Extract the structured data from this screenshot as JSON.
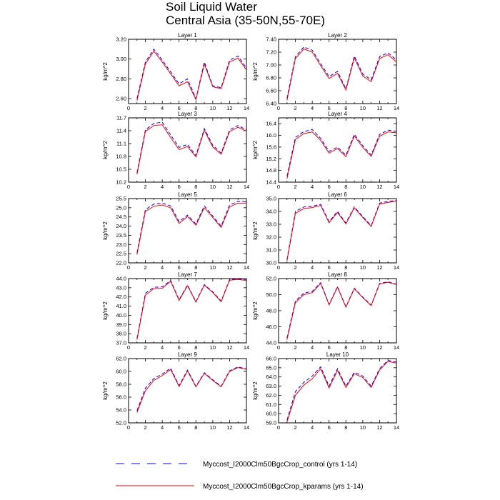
{
  "title": {
    "line1": "Soil Liquid Water",
    "line2": "Central Asia (35-50N,55-70E)"
  },
  "colors": {
    "control": "#0000ff",
    "kparams": "#ff0000",
    "axis": "#000000"
  },
  "legend": [
    {
      "key": "control",
      "label": "Myccost_I2000Clm50BgcCrop_control (yrs 1-14)",
      "style": "dashed",
      "color": "#0000ff"
    },
    {
      "key": "kparams",
      "label": "Myccost_I2000Clm50BgcCrop_kparams (yrs 1-14)",
      "style": "solid",
      "color": "#ff0000"
    }
  ],
  "chart_data": [
    {
      "type": "line",
      "title": "Layer 1",
      "ylabel": "kg/m^2",
      "x": [
        1,
        2,
        3,
        4,
        5,
        6,
        7,
        8,
        9,
        10,
        11,
        12,
        13,
        14
      ],
      "xlim": [
        0,
        14
      ],
      "xticks": [
        0,
        2,
        4,
        6,
        8,
        10,
        12,
        14
      ],
      "ylim": [
        2.55,
        3.2
      ],
      "yticks": [
        2.6,
        2.8,
        3.0,
        3.2
      ],
      "ytick_labels": [
        "2.60",
        "2.80",
        "3.00",
        "3.20"
      ],
      "series": [
        {
          "name": "Myccost_I2000Clm50BgcCrop_control (yrs 1-14)",
          "style": "dashed",
          "color": "#0000ff",
          "values": [
            2.6,
            2.97,
            3.1,
            2.99,
            2.87,
            2.75,
            2.8,
            2.6,
            2.97,
            2.73,
            2.71,
            2.99,
            3.03,
            2.91
          ]
        },
        {
          "name": "Myccost_I2000Clm50BgcCrop_kparams (yrs 1-14)",
          "style": "solid",
          "color": "#ff0000",
          "values": [
            2.58,
            2.95,
            3.08,
            2.97,
            2.85,
            2.73,
            2.77,
            2.59,
            2.95,
            2.72,
            2.7,
            2.97,
            3.01,
            2.89
          ]
        }
      ]
    },
    {
      "type": "line",
      "title": "Layer 2",
      "ylabel": "kg/m^2",
      "x": [
        1,
        2,
        3,
        4,
        5,
        6,
        7,
        8,
        9,
        10,
        11,
        12,
        13,
        14
      ],
      "xlim": [
        0,
        14
      ],
      "xticks": [
        0,
        2,
        4,
        6,
        8,
        10,
        12,
        14
      ],
      "ylim": [
        6.4,
        7.4
      ],
      "yticks": [
        6.4,
        6.6,
        6.8,
        7.0,
        7.2,
        7.4
      ],
      "ytick_labels": [
        "6.40",
        "6.60",
        "6.80",
        "7.00",
        "7.20",
        "7.40"
      ],
      "series": [
        {
          "name": "Myccost_I2000Clm50BgcCrop_control (yrs 1-14)",
          "style": "dashed",
          "color": "#0000ff",
          "values": [
            6.48,
            7.13,
            7.28,
            7.23,
            7.02,
            6.82,
            6.9,
            6.63,
            7.14,
            6.86,
            6.77,
            7.13,
            7.19,
            7.08
          ]
        },
        {
          "name": "Myccost_I2000Clm50BgcCrop_kparams (yrs 1-14)",
          "style": "solid",
          "color": "#ff0000",
          "values": [
            6.45,
            7.1,
            7.25,
            7.2,
            6.99,
            6.79,
            6.87,
            6.61,
            7.11,
            6.83,
            6.74,
            7.1,
            7.16,
            7.05
          ]
        }
      ]
    },
    {
      "type": "line",
      "title": "Layer 3",
      "ylabel": "kg/m^2",
      "x": [
        1,
        2,
        3,
        4,
        5,
        6,
        7,
        8,
        9,
        10,
        11,
        12,
        13,
        14
      ],
      "xlim": [
        0,
        14
      ],
      "xticks": [
        0,
        2,
        4,
        6,
        8,
        10,
        12,
        14
      ],
      "ylim": [
        10.2,
        11.7
      ],
      "yticks": [
        10.2,
        10.5,
        10.8,
        11.1,
        11.4,
        11.7
      ],
      "ytick_labels": [
        "10.2",
        "10.5",
        "10.8",
        "11.1",
        "11.4",
        "11.7"
      ],
      "series": [
        {
          "name": "Myccost_I2000Clm50BgcCrop_control (yrs 1-14)",
          "style": "dashed",
          "color": "#0000ff",
          "values": [
            10.42,
            11.42,
            11.57,
            11.6,
            11.3,
            11.01,
            11.08,
            10.82,
            11.45,
            11.06,
            10.88,
            11.42,
            11.52,
            11.42
          ]
        },
        {
          "name": "Myccost_I2000Clm50BgcCrop_kparams (yrs 1-14)",
          "style": "solid",
          "color": "#ff0000",
          "values": [
            10.38,
            11.38,
            11.52,
            11.54,
            11.24,
            10.96,
            11.03,
            10.79,
            11.41,
            11.02,
            10.85,
            11.38,
            11.48,
            11.39
          ]
        }
      ]
    },
    {
      "type": "line",
      "title": "Layer 4",
      "ylabel": "kg/m^2",
      "x": [
        1,
        2,
        3,
        4,
        5,
        6,
        7,
        8,
        9,
        10,
        11,
        12,
        13,
        14
      ],
      "xlim": [
        0,
        14
      ],
      "xticks": [
        0,
        2,
        4,
        6,
        8,
        10,
        12,
        14
      ],
      "ylim": [
        14.4,
        16.6
      ],
      "yticks": [
        14.4,
        14.8,
        15.2,
        15.6,
        16.0,
        16.4
      ],
      "ytick_labels": [
        "14.4",
        "14.8",
        "15.2",
        "15.6",
        "16.0",
        "16.4"
      ],
      "series": [
        {
          "name": "Myccost_I2000Clm50BgcCrop_control (yrs 1-14)",
          "style": "dashed",
          "color": "#0000ff",
          "values": [
            14.6,
            15.93,
            16.13,
            16.2,
            15.9,
            15.45,
            15.6,
            15.32,
            16.04,
            15.65,
            15.33,
            16.03,
            16.18,
            16.14
          ]
        },
        {
          "name": "Myccost_I2000Clm50BgcCrop_kparams (yrs 1-14)",
          "style": "solid",
          "color": "#ff0000",
          "values": [
            14.52,
            15.86,
            16.06,
            16.12,
            15.83,
            15.39,
            15.55,
            15.27,
            15.98,
            15.59,
            15.28,
            15.97,
            16.12,
            16.09
          ]
        }
      ]
    },
    {
      "type": "line",
      "title": "Layer 5",
      "ylabel": "kg/m^2",
      "x": [
        1,
        2,
        3,
        4,
        5,
        6,
        7,
        8,
        9,
        10,
        11,
        12,
        13,
        14
      ],
      "xlim": [
        0,
        14
      ],
      "xticks": [
        0,
        2,
        4,
        6,
        8,
        10,
        12,
        14
      ],
      "ylim": [
        22.0,
        25.5
      ],
      "yticks": [
        22.0,
        22.5,
        23.0,
        23.5,
        24.0,
        24.5,
        25.0,
        25.5
      ],
      "ytick_labels": [
        "22.0",
        "22.5",
        "23.0",
        "23.5",
        "24.0",
        "24.5",
        "25.0",
        "25.5"
      ],
      "series": [
        {
          "name": "Myccost_I2000Clm50BgcCrop_control (yrs 1-14)",
          "style": "dashed",
          "color": "#0000ff",
          "values": [
            22.55,
            24.9,
            25.2,
            25.25,
            25.1,
            24.25,
            24.6,
            24.12,
            25.1,
            24.55,
            24.0,
            25.15,
            25.35,
            25.33
          ]
        },
        {
          "name": "Myccost_I2000Clm50BgcCrop_kparams (yrs 1-14)",
          "style": "solid",
          "color": "#ff0000",
          "values": [
            22.45,
            24.8,
            25.08,
            25.15,
            25.0,
            24.15,
            24.52,
            24.05,
            25.0,
            24.47,
            23.93,
            25.05,
            25.25,
            25.25
          ]
        }
      ]
    },
    {
      "type": "line",
      "title": "Layer 6",
      "ylabel": "kg/m^2",
      "x": [
        1,
        2,
        3,
        4,
        5,
        6,
        7,
        8,
        9,
        10,
        11,
        12,
        13,
        14
      ],
      "xlim": [
        0,
        14
      ],
      "xticks": [
        0,
        2,
        4,
        6,
        8,
        10,
        12,
        14
      ],
      "ylim": [
        30.0,
        35.0
      ],
      "yticks": [
        30.0,
        31.0,
        32.0,
        33.0,
        34.0,
        35.0
      ],
      "ytick_labels": [
        "30.0",
        "31.0",
        "32.0",
        "33.0",
        "34.0",
        "35.0"
      ],
      "series": [
        {
          "name": "Myccost_I2000Clm50BgcCrop_control (yrs 1-14)",
          "style": "dashed",
          "color": "#0000ff",
          "values": [
            30.25,
            34.0,
            34.35,
            34.4,
            34.55,
            33.2,
            34.0,
            33.1,
            34.35,
            33.6,
            32.9,
            34.65,
            34.78,
            34.85
          ]
        },
        {
          "name": "Myccost_I2000Clm50BgcCrop_kparams (yrs 1-14)",
          "style": "solid",
          "color": "#ff0000",
          "values": [
            30.15,
            33.85,
            34.22,
            34.3,
            34.47,
            33.12,
            33.92,
            33.03,
            34.28,
            33.53,
            32.83,
            34.57,
            34.7,
            34.8
          ]
        }
      ]
    },
    {
      "type": "line",
      "title": "Layer 7",
      "ylabel": "kg/m^2",
      "x": [
        1,
        2,
        3,
        4,
        5,
        6,
        7,
        8,
        9,
        10,
        11,
        12,
        13,
        14
      ],
      "xlim": [
        0,
        14
      ],
      "xticks": [
        0,
        2,
        4,
        6,
        8,
        10,
        12,
        14
      ],
      "ylim": [
        37.0,
        44.0
      ],
      "yticks": [
        37.0,
        38.0,
        39.0,
        40.0,
        41.0,
        42.0,
        43.0,
        44.0
      ],
      "ytick_labels": [
        "37.0",
        "38.0",
        "39.0",
        "40.0",
        "41.0",
        "42.0",
        "43.0",
        "44.0"
      ],
      "series": [
        {
          "name": "Myccost_I2000Clm50BgcCrop_control (yrs 1-14)",
          "style": "dashed",
          "color": "#0000ff",
          "values": [
            37.5,
            42.4,
            43.05,
            43.1,
            43.8,
            41.7,
            43.3,
            41.5,
            43.35,
            42.55,
            41.55,
            43.9,
            43.95,
            43.85
          ]
        },
        {
          "name": "Myccost_I2000Clm50BgcCrop_kparams (yrs 1-14)",
          "style": "solid",
          "color": "#ff0000",
          "values": [
            37.35,
            42.2,
            42.9,
            42.95,
            43.7,
            41.62,
            43.22,
            41.43,
            43.28,
            42.48,
            41.48,
            43.83,
            43.9,
            43.8
          ]
        }
      ]
    },
    {
      "type": "line",
      "title": "Layer 8",
      "ylabel": "kg/m^2",
      "x": [
        1,
        2,
        3,
        4,
        5,
        6,
        7,
        8,
        9,
        10,
        11,
        12,
        13,
        14
      ],
      "xlim": [
        0,
        14
      ],
      "xticks": [
        0,
        2,
        4,
        6,
        8,
        10,
        12,
        14
      ],
      "ylim": [
        44.0,
        52.0
      ],
      "yticks": [
        44.0,
        46.0,
        48.0,
        50.0,
        52.0
      ],
      "ytick_labels": [
        "44.0",
        "46.0",
        "48.0",
        "50.0",
        "52.0"
      ],
      "series": [
        {
          "name": "Myccost_I2000Clm50BgcCrop_control (yrs 1-14)",
          "style": "dashed",
          "color": "#0000ff",
          "values": [
            44.6,
            49.2,
            50.2,
            50.4,
            51.5,
            48.8,
            51.0,
            48.5,
            50.8,
            49.7,
            48.7,
            51.4,
            51.6,
            51.3
          ]
        },
        {
          "name": "Myccost_I2000Clm50BgcCrop_kparams (yrs 1-14)",
          "style": "solid",
          "color": "#ff0000",
          "values": [
            44.4,
            49.0,
            50.0,
            50.25,
            51.4,
            48.72,
            50.92,
            48.43,
            50.73,
            49.63,
            48.63,
            51.33,
            51.53,
            51.25
          ]
        }
      ]
    },
    {
      "type": "line",
      "title": "Layer 9",
      "ylabel": "kg/m^2",
      "x": [
        1,
        2,
        3,
        4,
        5,
        6,
        7,
        8,
        9,
        10,
        11,
        12,
        13,
        14
      ],
      "xlim": [
        0,
        14
      ],
      "xticks": [
        0,
        2,
        4,
        6,
        8,
        10,
        12,
        14
      ],
      "ylim": [
        52.0,
        62.0
      ],
      "yticks": [
        52.0,
        54.0,
        56.0,
        58.0,
        60.0,
        62.0
      ],
      "ytick_labels": [
        "52.0",
        "54.0",
        "56.0",
        "58.0",
        "60.0",
        "62.0"
      ],
      "series": [
        {
          "name": "Myccost_I2000Clm50BgcCrop_control (yrs 1-14)",
          "style": "dashed",
          "color": "#0000ff",
          "values": [
            53.9,
            57.4,
            58.9,
            59.6,
            60.5,
            57.8,
            60.2,
            57.7,
            59.8,
            58.7,
            57.7,
            60.1,
            60.7,
            60.4
          ]
        },
        {
          "name": "Myccost_I2000Clm50BgcCrop_kparams (yrs 1-14)",
          "style": "solid",
          "color": "#ff0000",
          "values": [
            53.6,
            57.0,
            58.6,
            59.35,
            60.3,
            57.65,
            60.05,
            57.6,
            59.7,
            58.6,
            57.6,
            60.0,
            60.6,
            60.35
          ]
        }
      ]
    },
    {
      "type": "line",
      "title": "Layer 10",
      "ylabel": "kg/m^2",
      "x": [
        1,
        2,
        3,
        4,
        5,
        6,
        7,
        8,
        9,
        10,
        11,
        12,
        13,
        14
      ],
      "xlim": [
        0,
        14
      ],
      "xticks": [
        0,
        2,
        4,
        6,
        8,
        10,
        12,
        14
      ],
      "ylim": [
        59.0,
        66.0
      ],
      "yticks": [
        59.0,
        60.0,
        61.0,
        62.0,
        63.0,
        64.0,
        65.0,
        66.0
      ],
      "ytick_labels": [
        "59.0",
        "60.0",
        "61.0",
        "62.0",
        "63.0",
        "64.0",
        "65.0",
        "66.0"
      ],
      "series": [
        {
          "name": "Myccost_I2000Clm50BgcCrop_control (yrs 1-14)",
          "style": "dashed",
          "color": "#0000ff",
          "values": [
            59.3,
            62.4,
            63.4,
            64.1,
            65.1,
            63.0,
            64.9,
            63.0,
            64.5,
            64.1,
            63.0,
            64.9,
            65.8,
            65.6
          ]
        },
        {
          "name": "Myccost_I2000Clm50BgcCrop_kparams (yrs 1-14)",
          "style": "solid",
          "color": "#ff0000",
          "values": [
            59.1,
            62.0,
            63.1,
            63.8,
            64.9,
            62.8,
            64.7,
            62.85,
            64.35,
            63.95,
            62.85,
            64.75,
            65.7,
            65.5
          ]
        }
      ]
    }
  ]
}
